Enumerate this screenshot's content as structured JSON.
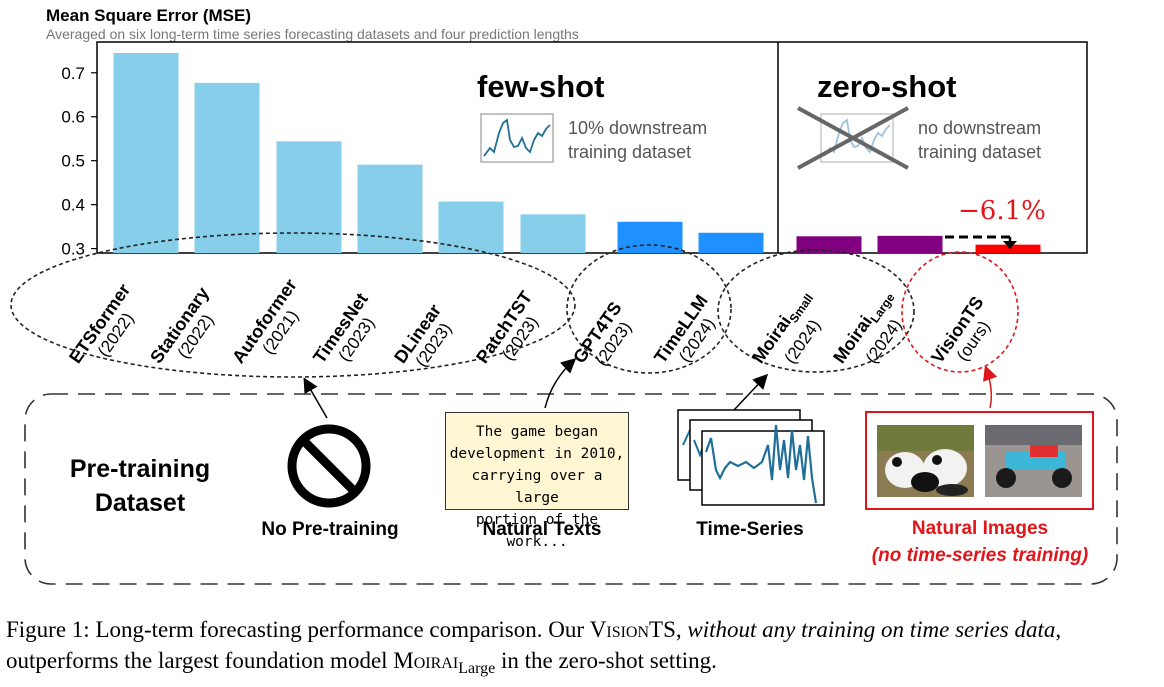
{
  "chart_data": {
    "type": "bar",
    "title": "Mean Square Error (MSE)",
    "subtitle": "Averaged on six long-term time series forecasting datasets and four prediction lengths",
    "ylim": [
      0.29,
      0.77
    ],
    "yticks": [
      "0.3",
      "0.4",
      "0.5",
      "0.6",
      "0.7"
    ],
    "categories": [
      {
        "name": "ETSformer",
        "year": "(2022)"
      },
      {
        "name": "Stationary",
        "year": "(2022)"
      },
      {
        "name": "Autoformer",
        "year": "(2021)"
      },
      {
        "name": "TimesNet",
        "year": "(2023)"
      },
      {
        "name": "DLinear",
        "year": "(2023)"
      },
      {
        "name": "PatchTST",
        "year": "(2023)"
      },
      {
        "name": "GPT4TS",
        "year": "(2023)"
      },
      {
        "name": "TimeLLM",
        "year": "(2024)"
      },
      {
        "name": "Moirai",
        "sub": "Small",
        "year": "(2024)"
      },
      {
        "name": "Moirai",
        "sub": "Large",
        "year": "(2024)"
      },
      {
        "name": "VisionTS",
        "year": "(ours)"
      }
    ],
    "values": [
      0.745,
      0.677,
      0.544,
      0.491,
      0.407,
      0.378,
      0.361,
      0.336,
      0.328,
      0.329,
      0.309
    ],
    "colors": [
      "#87ceeb",
      "#87ceeb",
      "#87ceeb",
      "#87ceeb",
      "#87ceeb",
      "#87ceeb",
      "#1e90ff",
      "#1e90ff",
      "#800080",
      "#800080",
      "#ff0000"
    ],
    "few_shot_panel": {
      "heading": "few-shot",
      "note_line1": "10% downstream",
      "note_line2": "training dataset"
    },
    "zero_shot_panel": {
      "heading": "zero-shot",
      "note_line1": "no downstream",
      "note_line2": "training dataset"
    },
    "improvement_label": "−6.1%"
  },
  "pretraining": {
    "title_line1": "Pre-training",
    "title_line2": "Dataset",
    "sources": [
      {
        "label": "No Pre-training"
      },
      {
        "label": "Natural Texts"
      },
      {
        "label": "Time-Series"
      },
      {
        "label": "Natural Images",
        "note": "(no time-series training)"
      }
    ],
    "text_sample": [
      "The game began",
      "development in 2010,",
      "carrying over a large",
      "portion of the work..."
    ]
  },
  "caption": {
    "prefix": "Figure 1: Long-term forecasting performance comparison. Our ",
    "model": "VisionTS",
    "comma": ", ",
    "italic": "without any training on time series data",
    "middle": ", outperforms the largest foundation model ",
    "baseline": "Moirai",
    "baseline_sub": "Large",
    "suffix": " in the zero-shot setting."
  }
}
